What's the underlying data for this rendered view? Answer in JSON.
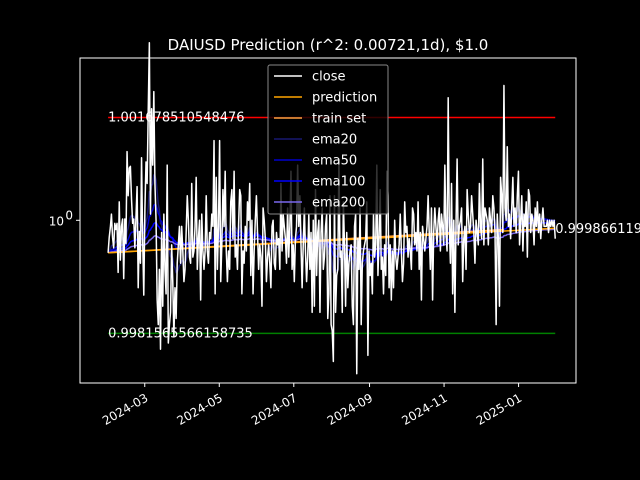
{
  "chart_data": {
    "type": "line",
    "title": "DAIUSD Prediction (r^2: 0.00721,1d), $1.0",
    "xlabel": "",
    "ylabel": "",
    "x_range": [
      "2024-01-08",
      "2025-02-17"
    ],
    "ylim": [
      0.99735,
      1.00265
    ],
    "y_scale": "log",
    "grid": false,
    "legend_position": "top-center",
    "x_ticks": [
      "2024-03",
      "2024-05",
      "2024-07",
      "2024-09",
      "2024-11",
      "2025-01"
    ],
    "y_ticks": [
      {
        "value": 1.0,
        "label": "10^0"
      }
    ],
    "reference_lines": [
      {
        "label": "1.001678510548476",
        "value": 1.001678510548476,
        "color": "#ff0000",
        "x_start": "2024-01-31",
        "x_end": "2025-01-31"
      },
      {
        "label": "0.9981565566158735",
        "value": 0.9981565566158735,
        "color": "#008000",
        "x_start": "2024-01-31",
        "x_end": "2025-01-31"
      }
    ],
    "end_label": {
      "text": "0.999866119",
      "value": 0.999866119
    },
    "series": [
      {
        "name": "close",
        "color": "#ffffff",
        "x_start": "2024-01-31",
        "x_end": "2025-01-31",
        "values": [
          0.99947,
          0.99972,
          0.99988,
          1.0001,
          0.99972,
          0.99955,
          0.99995,
          0.99985,
          0.99995,
          0.99915,
          1.0003,
          0.99935,
          0.9999,
          1.00002,
          0.99905,
          1.00002,
          0.99962,
          1.00112,
          1.0004,
          1.00085,
          1.00088,
          1.00035,
          0.99995,
          1.00002,
          0.99955,
          1.00005,
          1.00055,
          0.9989,
          0.99982,
          0.9993,
          1.00102,
          0.99968,
          0.99878,
          1.00018,
          1.00095,
          1.0006,
          1.0018,
          1.0029,
          1.0001,
          1.00182,
          1.0009,
          1.0021,
          1.0006,
          1.0,
          0.9987,
          0.9983,
          0.9992,
          0.9979,
          0.9998,
          0.9986,
          1.0001,
          0.9992,
          0.9988,
          1.0009,
          0.998,
          0.9983,
          0.9985,
          0.9996,
          0.999,
          0.9981,
          0.9989,
          0.9984,
          0.9993,
          0.9996,
          0.9999,
          0.9993,
          0.9999,
          0.9995,
          0.999,
          0.9992,
          0.9998,
          1.0004,
          1.0,
          0.9994,
          0.9993,
          1.0006,
          0.9994,
          0.9995,
          0.9999,
          1.0007,
          0.9992,
          0.9997,
          1.0,
          0.9987,
          1.0001,
          0.9995,
          0.9992,
          0.9995,
          1.0004,
          0.9995,
          0.9993,
          0.9998,
          0.9997,
          1.0001,
          0.9999,
          1.0013,
          0.9988,
          1.0007,
          0.9992,
          0.9999,
          1.0013,
          0.999,
          0.9996,
          1.0005,
          0.9999,
          1.0008,
          0.9995,
          0.999,
          0.9995,
          0.9992,
          1.0003,
          1.0005,
          0.9997,
          1.0008,
          0.9994,
          0.9996,
          0.9992,
          0.9999,
          1.0005,
          1.0004,
          0.9988,
          0.9995,
          0.9993,
          0.9999,
          0.9995,
          1.0003,
          1.0,
          1.0006,
          0.9991,
          1.0,
          0.9988,
          0.9995,
          1.0,
          1.0004,
          0.9998,
          0.9992,
          0.9996,
          0.9994,
          0.9986,
          1.0002,
          1.0,
          0.9997,
          0.999,
          0.9994,
          0.9996,
          0.9993,
          0.9989,
          0.9999,
          1.0,
          0.9993,
          0.9992,
          0.9998,
          0.9996,
          0.9997,
          0.9992,
          1.0006,
          0.9995,
          1.0001,
          0.9999,
          0.9997,
          0.9993,
          1.0002,
          0.9994,
          0.9999,
          1.0008,
          0.9992,
          0.9996,
          0.999,
          0.9997,
          0.9999,
          1.0009,
          0.9999,
          1.0004,
          0.9996,
          0.9989,
          0.9996,
          1.0002,
          0.9995,
          0.999,
          0.9994,
          1.0001,
          0.9992,
          0.9998,
          0.9985,
          1.0,
          0.9986,
          1.0005,
          0.9991,
          0.9998,
          1.0,
          0.9985,
          0.9998,
          1.0002,
          0.9992,
          0.9994,
          0.9999,
          1.0001,
          0.9984,
          0.9988,
          1.0004,
          0.9983,
          0.9982,
          0.9977,
          1.0004,
          0.9985,
          0.9991,
          0.9992,
          1.001,
          0.9994,
          0.9995,
          0.9985,
          1.0003,
          0.9996,
          0.9986,
          0.9998,
          0.9989,
          0.9993,
          0.9995,
          0.9996,
          0.9986,
          0.9983,
          0.9999,
          1.0001,
          0.9975,
          0.9997,
          0.9992,
          1.0002,
          0.9983,
          0.9993,
          0.9995,
          0.9996,
          0.9997,
          1.0003,
          0.9978,
          0.9995,
          0.9991,
          0.9993,
          0.9988,
          1.0001,
          0.9994,
          0.9996,
          1.0009,
          0.9991,
          0.9997,
          1.0005,
          0.9992,
          0.9994,
          0.9988,
          0.9996,
          0.9991,
          1.0008,
          1.0004,
          0.9989,
          0.9996,
          0.9987,
          0.9995,
          0.9989,
          1.0,
          0.9994,
          0.9992,
          0.9994,
          0.9996,
          1.0001,
          0.9995,
          0.999,
          0.9993,
          1.0003,
          0.9998,
          0.9999,
          0.9994,
          0.9997,
          0.9995,
          0.9992,
          1.0002,
          1.0001,
          0.9996,
          0.9998,
          0.9995,
          1.0003,
          0.9992,
          0.9998,
          0.9987,
          0.9999,
          0.9997,
          0.9995,
          0.9997,
          0.9999,
          1.0004,
          0.9998,
          0.9992,
          1.0002,
          0.9987,
          0.9998,
          1.0002,
          0.9999,
          0.9996,
          1.0,
          1.0002,
          0.9995,
          1.0001,
          0.9999,
          0.9996,
          1.0009,
          0.9998,
          0.9995,
          1.002,
          0.9999,
          0.9993,
          1.0006,
          0.9988,
          1.0,
          0.9985,
          0.9999,
          1.001,
          0.9996,
          0.9999,
          1.0,
          1.0002,
          0.999,
          0.9997,
          0.9999,
          0.9992,
          1.0005,
          1.0001,
          0.9998,
          0.9999,
          1.0004,
          1.0001,
          0.9998,
          0.9993,
          1.0,
          0.9998,
          0.9996,
          1.0006,
          0.9999,
          0.9997,
          1.001,
          0.9996,
          1.0002,
          1.0001,
          1.0,
          0.9996,
          1.0002,
          1.0,
          0.9998,
          1.0004,
          1.0002,
          0.9998,
          0.9983,
          1.0001,
          0.9997,
          0.9986,
          1.0007,
          1.0004,
          0.9998,
          1.0022,
          1.0002,
          1.0,
          1.0012,
          0.9999,
          1.0001,
          0.9997,
          1.0002,
          1.0007,
          0.9999,
          1.0002,
          0.9998,
          1.0004,
          1.0008,
          0.9996,
          1.0,
          1.0004,
          0.9995,
          1.0001,
          0.9999,
          1.0003,
          0.9994,
          1.0005,
          1.0004,
          0.9998,
          1.0001,
          1.0,
          0.9996,
          1.0002,
          0.9999,
          1.0003,
          0.9998,
          1.0001,
          0.9997,
          1.0,
          1.0002,
          0.9999,
          0.9999,
          0.9999,
          1.0,
          0.9998,
          1.0,
          0.9999,
          1.0,
          0.9999,
          1.0,
          0.9997
        ]
      },
      {
        "name": "prediction",
        "color": "#ffa500",
        "x_start": "2024-01-31",
        "x_end": "2025-01-31",
        "values": [
          0.99947,
          0.99987
        ]
      },
      {
        "name": "train set",
        "color": "#ffa040",
        "x_start": "2024-01-31",
        "x_end": "2024-12-20",
        "values": [
          0.99947,
          0.99985
        ]
      },
      {
        "name": "ema20",
        "color": "#191970",
        "x_start": "2024-01-31",
        "x_end": "2025-01-31",
        "smoothing": 20
      },
      {
        "name": "ema50",
        "color": "#0000cd",
        "x_start": "2024-01-31",
        "x_end": "2025-01-31",
        "smoothing": 50
      },
      {
        "name": "ema100",
        "color": "#0000ff",
        "x_start": "2024-01-31",
        "x_end": "2025-01-31",
        "smoothing": 100
      },
      {
        "name": "ema200",
        "color": "#7b68ee",
        "x_start": "2024-01-31",
        "x_end": "2025-01-31",
        "smoothing": 200
      }
    ]
  }
}
